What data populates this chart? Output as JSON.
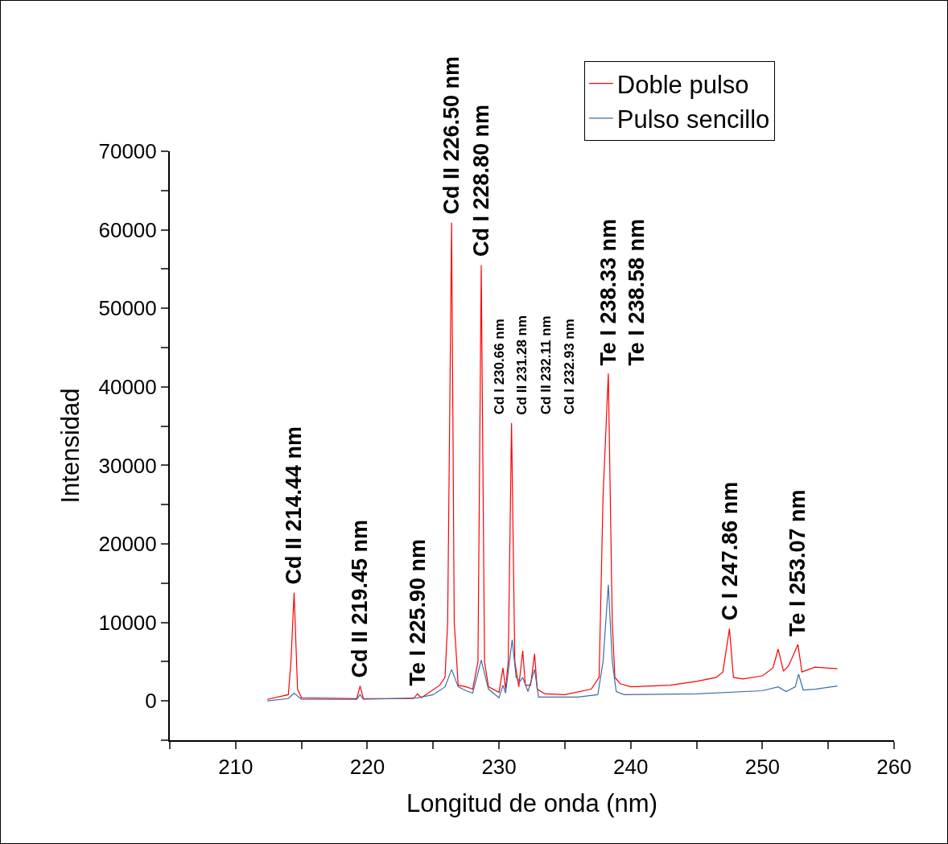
{
  "chart_data": {
    "type": "line",
    "xlabel": "Longitud de onda (nm)",
    "ylabel": "Intensidad",
    "xlim": [
      205,
      260
    ],
    "ylim": [
      -5000,
      70000
    ],
    "xticks": [
      {
        "value": 205,
        "label": null
      },
      210,
      {
        "value": 215,
        "label": null
      },
      220,
      {
        "value": 225,
        "label": null
      },
      230,
      {
        "value": 235,
        "label": null
      },
      240,
      {
        "value": 245,
        "label": null
      },
      250,
      {
        "value": 255,
        "label": null
      },
      260
    ],
    "yticks": [
      {
        "value": -5000,
        "label": null
      },
      0,
      {
        "value": 5000,
        "label": null
      },
      10000,
      {
        "value": 15000,
        "label": null
      },
      20000,
      {
        "value": 25000,
        "label": null
      },
      30000,
      {
        "value": 35000,
        "label": null
      },
      40000,
      {
        "value": 45000,
        "label": null
      },
      50000,
      {
        "value": 55000,
        "label": null
      },
      60000,
      {
        "value": 65000,
        "label": null
      },
      70000
    ],
    "grid": false,
    "legend": "top right",
    "marker": "none",
    "line_style": "solid",
    "series": [
      {
        "name": "Doble pulso",
        "color": "#ff0000",
        "x": [
          212.4,
          214.0,
          214.2,
          214.44,
          214.7,
          215.0,
          219.2,
          219.45,
          219.7,
          223.5,
          223.8,
          224.1,
          225.5,
          225.9,
          226.1,
          226.4,
          226.6,
          226.9,
          227.5,
          228.0,
          228.4,
          228.65,
          228.9,
          229.2,
          230.0,
          230.3,
          230.5,
          230.7,
          230.95,
          231.2,
          231.5,
          231.8,
          232.0,
          232.4,
          232.7,
          232.9,
          233.5,
          235.0,
          237.0,
          237.6,
          237.9,
          238.3,
          238.6,
          238.8,
          239.2,
          240.0,
          243.0,
          245.0,
          246.5,
          247.0,
          247.5,
          247.8,
          248.5,
          250.0,
          250.8,
          251.2,
          251.6,
          252.0,
          252.7,
          253.0,
          254.0,
          255.7
        ],
        "values": [
          200,
          800,
          5000,
          13800,
          1500,
          400,
          300,
          1900,
          300,
          300,
          900,
          400,
          2000,
          3000,
          10000,
          60900,
          10000,
          2000,
          1800,
          1500,
          5000,
          55500,
          5000,
          1800,
          1100,
          4200,
          1500,
          5000,
          35400,
          5000,
          1800,
          6400,
          2000,
          2000,
          6000,
          1500,
          900,
          800,
          1500,
          3000,
          26000,
          41700,
          10000,
          3000,
          2200,
          1800,
          2000,
          2500,
          3000,
          3700,
          9200,
          3000,
          2800,
          3200,
          4200,
          6600,
          3800,
          4500,
          7200,
          3700,
          4300,
          4100
        ]
      },
      {
        "name": "Pulso sencillo",
        "color": "#3a6ea5",
        "x": [
          212.4,
          214.0,
          214.44,
          215.0,
          219.2,
          219.45,
          219.7,
          223.8,
          225.0,
          225.9,
          226.4,
          226.9,
          227.5,
          228.0,
          228.65,
          229.2,
          230.0,
          230.3,
          230.5,
          231.0,
          231.3,
          231.6,
          231.8,
          232.2,
          232.7,
          233.0,
          234.0,
          236.0,
          237.5,
          237.9,
          238.3,
          238.6,
          238.9,
          239.5,
          245.0,
          250.0,
          251.2,
          251.8,
          252.5,
          252.75,
          253.1,
          254.0,
          255.7
        ],
        "values": [
          0,
          300,
          1000,
          200,
          200,
          800,
          200,
          400,
          800,
          1800,
          4000,
          1800,
          1300,
          1000,
          5200,
          1500,
          400,
          2000,
          1000,
          7800,
          3000,
          2500,
          3000,
          1200,
          4000,
          500,
          500,
          500,
          800,
          5000,
          14800,
          5000,
          1200,
          800,
          900,
          1300,
          1800,
          1200,
          1800,
          3400,
          1400,
          1500,
          1900
        ]
      }
    ],
    "annotations": [
      {
        "text": "Cd II 214.44 nm",
        "x": 214.44,
        "y": 13800
      },
      {
        "text": "Cd II 219.45 nm",
        "x": 219.45,
        "y": 1900
      },
      {
        "text": "Te I 225.90 nm",
        "x": 223.8,
        "y": 900
      },
      {
        "text": "Cd II 226.50 nm",
        "x": 226.4,
        "y": 60900
      },
      {
        "text": "Cd I 228.80 nm",
        "x": 228.65,
        "y": 55500
      },
      "Cd I 230.66 nm",
      "Cd II 231.28 nm",
      "Cd II 232.11 nm",
      "Cd I 232.93 nm",
      {
        "text": "Te I 238.33 nm",
        "x": 238.3,
        "y": 41700
      },
      "Te I 238.58 nm",
      {
        "text": "C I 247.86 nm",
        "x": 247.5,
        "y": 9200
      },
      {
        "text": "Te I 253.07 nm",
        "x": 252.7,
        "y": 7200
      }
    ]
  }
}
